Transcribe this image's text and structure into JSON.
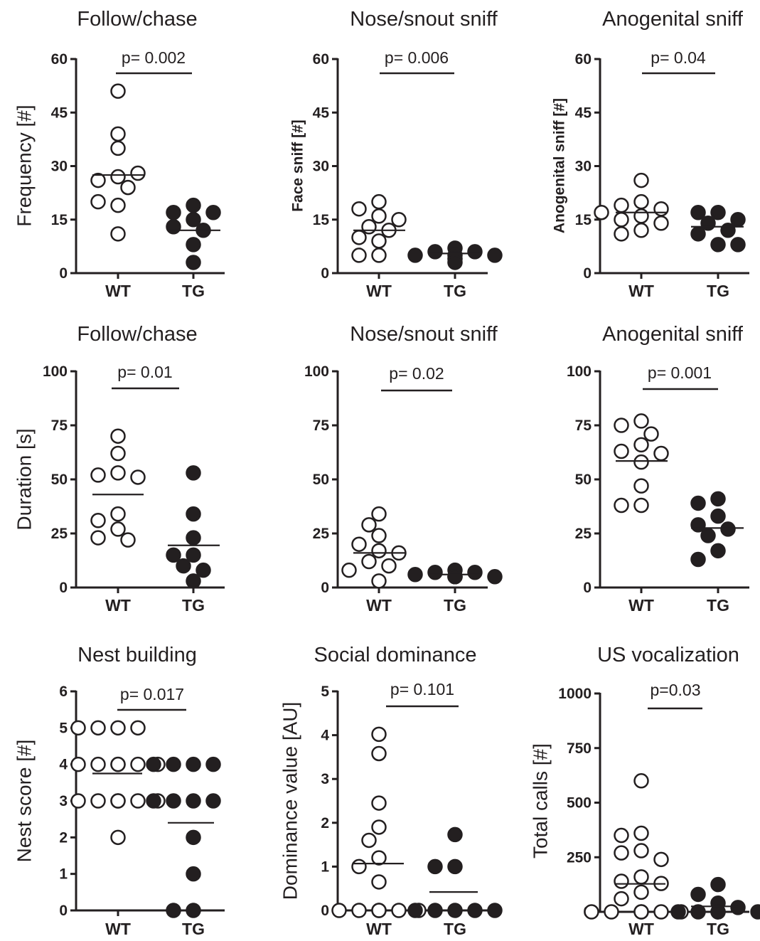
{
  "colors": {
    "ink": "#231f20",
    "background": "#ffffff"
  },
  "chart_data": [
    {
      "type": "scatter",
      "title": "Follow/chase",
      "ylabel": "Frequency [#]",
      "categories": [
        "WT",
        "TG"
      ],
      "ylim": [
        0,
        60
      ],
      "yticks": [
        "0",
        "15",
        "30",
        "45",
        "60"
      ],
      "p_value": "p= 0.002",
      "series": [
        {
          "values": [
            51,
            39,
            35,
            27,
            26,
            28,
            24,
            19,
            20,
            11
          ],
          "mean": 27.5,
          "filled": false
        },
        {
          "values": [
            19,
            17,
            17,
            15,
            13,
            12,
            8,
            3
          ],
          "mean": 12,
          "filled": true
        }
      ]
    },
    {
      "type": "scatter",
      "title": "Nose/snout sniff",
      "ylabel": "Face sniff [#]",
      "categories": [
        "WT",
        "TG"
      ],
      "ylim": [
        0,
        60
      ],
      "yticks": [
        "0",
        "15",
        "30",
        "45",
        "60"
      ],
      "p_value": "p= 0.006",
      "series": [
        {
          "values": [
            20,
            18,
            16,
            15,
            13,
            12,
            10,
            9,
            5,
            5
          ],
          "mean": 12,
          "filled": false
        },
        {
          "values": [
            7,
            6,
            6,
            5,
            5,
            5,
            4,
            3
          ],
          "mean": 5.5,
          "filled": true
        }
      ]
    },
    {
      "type": "scatter",
      "title": "Anogenital sniff",
      "ylabel": "Anogenital sniff [#]",
      "categories": [
        "WT",
        "TG"
      ],
      "ylim": [
        0,
        60
      ],
      "yticks": [
        "0",
        "15",
        "30",
        "45",
        "60"
      ],
      "p_value": "p= 0.04",
      "series": [
        {
          "values": [
            26,
            20,
            19,
            18,
            17,
            16,
            15,
            14,
            12,
            11
          ],
          "mean": 17,
          "filled": false
        },
        {
          "values": [
            17,
            17,
            15,
            14,
            12,
            11,
            8,
            8
          ],
          "mean": 13,
          "filled": true
        }
      ]
    },
    {
      "type": "scatter",
      "title": "Follow/chase",
      "ylabel": "Duration [s]",
      "categories": [
        "WT",
        "TG"
      ],
      "ylim": [
        0,
        100
      ],
      "yticks": [
        "0",
        "25",
        "50",
        "75",
        "100"
      ],
      "p_value": "p= 0.01",
      "series": [
        {
          "values": [
            70,
            62,
            53,
            52,
            51,
            34,
            31,
            27,
            23,
            22
          ],
          "mean": 43,
          "filled": false
        },
        {
          "values": [
            53,
            34,
            23,
            15,
            15,
            10,
            8,
            3
          ],
          "mean": 19.5,
          "filled": true
        }
      ]
    },
    {
      "type": "scatter",
      "title": "Nose/snout sniff",
      "ylabel": "",
      "categories": [
        "WT",
        "TG"
      ],
      "ylim": [
        0,
        100
      ],
      "yticks": [
        "0",
        "25",
        "50",
        "75",
        "100"
      ],
      "p_value": "p= 0.02",
      "series": [
        {
          "values": [
            34,
            29,
            24,
            20,
            17,
            16,
            12,
            10,
            8,
            3
          ],
          "mean": 16,
          "filled": false
        },
        {
          "values": [
            8,
            7,
            7,
            6,
            5,
            5,
            5,
            5
          ],
          "mean": 6,
          "filled": true
        }
      ]
    },
    {
      "type": "scatter",
      "title": "Anogenital sniff",
      "ylabel": "",
      "categories": [
        "WT",
        "TG"
      ],
      "ylim": [
        0,
        100
      ],
      "yticks": [
        "0",
        "25",
        "50",
        "75",
        "100"
      ],
      "p_value": "p= 0.001",
      "series": [
        {
          "values": [
            77,
            75,
            71,
            66,
            63,
            62,
            58,
            47,
            38,
            38
          ],
          "mean": 58.5,
          "filled": false
        },
        {
          "values": [
            41,
            39,
            33,
            29,
            27,
            24,
            17,
            13
          ],
          "mean": 27.5,
          "filled": true
        }
      ]
    },
    {
      "type": "scatter",
      "title": "Nest building",
      "ylabel": "Nest score [#]",
      "categories": [
        "WT",
        "TG"
      ],
      "ylim": [
        0,
        6
      ],
      "yticks": [
        "0",
        "1",
        "2",
        "3",
        "4",
        "5",
        "6"
      ],
      "p_value": "p= 0.017",
      "series": [
        {
          "values": [
            5,
            5,
            5,
            5,
            4,
            4,
            4,
            4,
            4,
            4,
            3,
            3,
            3,
            3,
            3,
            3,
            2
          ],
          "mean": 3.75,
          "filled": false
        },
        {
          "values": [
            4,
            4,
            4,
            4,
            3,
            3,
            3,
            3,
            2,
            1,
            0,
            0
          ],
          "mean": 2.4,
          "filled": true
        }
      ]
    },
    {
      "type": "scatter",
      "title": "Social dominance",
      "ylabel": "Dominance value [AU]",
      "categories": [
        "WT",
        "TG"
      ],
      "ylim": [
        0,
        5
      ],
      "yticks": [
        "0",
        "1",
        "2",
        "3",
        "4",
        "5"
      ],
      "p_value": "p= 0.101",
      "series": [
        {
          "values": [
            4.02,
            3.58,
            2.45,
            1.9,
            1.6,
            1.2,
            1.0,
            0.65,
            0,
            0,
            0,
            0,
            0,
            0
          ],
          "mean": 1.07,
          "filled": false
        },
        {
          "values": [
            1.73,
            1.0,
            1.0,
            0,
            0,
            0,
            0,
            0
          ],
          "mean": 0.42,
          "filled": true
        }
      ]
    },
    {
      "type": "scatter",
      "title": "US vocalization",
      "ylabel": "Total calls [#]",
      "categories": [
        "WT",
        "TG"
      ],
      "ylim": [
        0,
        1000
      ],
      "yticks": [
        "0",
        "250",
        "500",
        "750",
        "1000"
      ],
      "p_value": "p=0.03",
      "series": [
        {
          "values": [
            600,
            360,
            350,
            280,
            270,
            240,
            160,
            140,
            130,
            90,
            60,
            0,
            0,
            0,
            0,
            0,
            0
          ],
          "mean": 128,
          "filled": false
        },
        {
          "values": [
            125,
            80,
            40,
            20,
            0,
            0,
            0,
            0,
            0,
            0
          ],
          "mean": 25,
          "filled": true
        }
      ]
    }
  ]
}
